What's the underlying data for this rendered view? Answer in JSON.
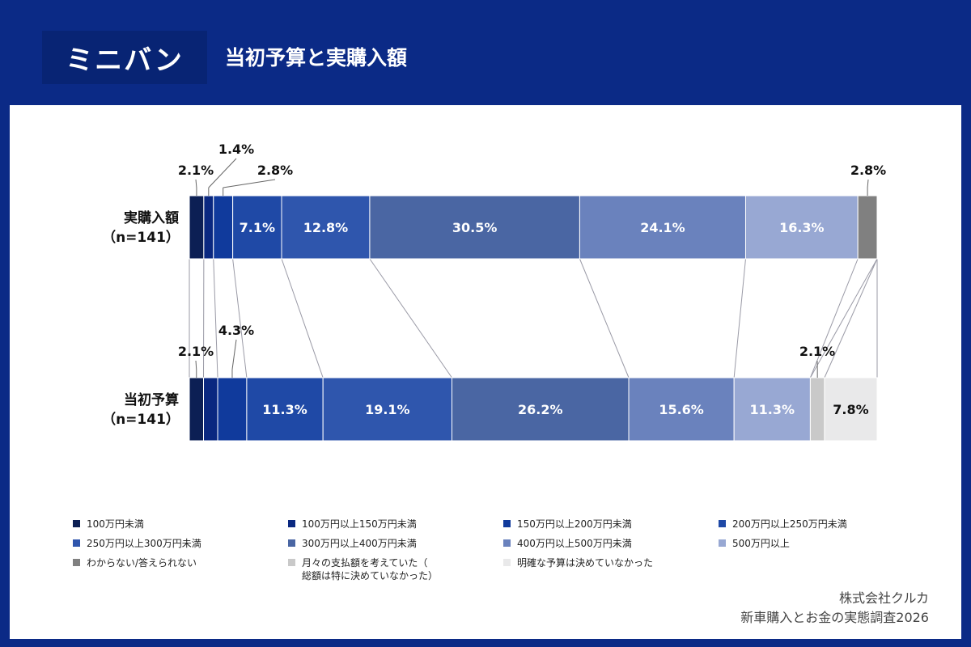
{
  "header": {
    "badge": "ミニバン",
    "title": "当初予算と実購入額"
  },
  "chart_data": {
    "type": "bar",
    "orientation": "horizontal-stacked-100",
    "categories": [
      "100万円未満",
      "100万円以上150万円未満",
      "150万円以上200万円未満",
      "200万円以上250万円未満",
      "250万円以上300万円未満",
      "300万円以上400万円未満",
      "400万円以上500万円未満",
      "500万円以上",
      "わからない/答えられない",
      "月々の支払額を考えていた（総額は特に決めていなかった）",
      "明確な予算は決めていなかった"
    ],
    "colors": [
      "#0c1f54",
      "#0a2880",
      "#103a9c",
      "#1f49a6",
      "#2f56ad",
      "#4a66a3",
      "#6a82bd",
      "#98a8d3",
      "#808080",
      "#c9c9c9",
      "#e9e9ea"
    ],
    "series": [
      {
        "name": "実購入額",
        "n_label": "（n=141）",
        "values": [
          2.1,
          1.4,
          2.8,
          7.1,
          12.8,
          30.5,
          24.1,
          16.3,
          2.8,
          0,
          0
        ],
        "labels": [
          "2.1%",
          "1.4%",
          "2.8%",
          "7.1%",
          "12.8%",
          "30.5%",
          "24.1%",
          "16.3%",
          "2.8%",
          "",
          ""
        ]
      },
      {
        "name": "当初予算",
        "n_label": "（n=141）",
        "values": [
          2.1,
          2.1,
          4.3,
          11.3,
          19.1,
          26.2,
          15.6,
          11.3,
          0,
          2.1,
          7.8
        ],
        "labels": [
          "2.1%",
          "",
          "4.3%",
          "11.3%",
          "19.1%",
          "26.2%",
          "15.6%",
          "11.3%",
          "",
          "2.1%",
          "7.8%"
        ]
      }
    ],
    "legend": [
      "100万円未満",
      "100万円以上150万円未満",
      "150万円以上200万円未満",
      "200万円以上250万円未満",
      "250万円以上300万円未満",
      "300万円以上400万円未満",
      "400万円以上500万円未満",
      "500万円以上",
      "わからない/答えられない",
      "月々の支払額を考えていた（\n総額は特に決めていなかった）",
      "明確な予算は決めていなかった"
    ]
  },
  "footer": {
    "company": "株式会社クルカ",
    "survey": "新車購入とお金の実態調査2026"
  }
}
